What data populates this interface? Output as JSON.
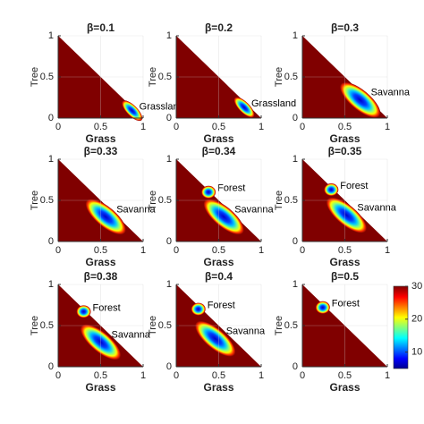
{
  "chart_data": [
    {
      "type": "heatmap",
      "title": "β=0.1",
      "xlabel": "Grass",
      "ylabel": "Tree",
      "xlim": [
        0,
        1
      ],
      "ylim": [
        0,
        1
      ],
      "xticks": [
        0,
        0.5,
        1
      ],
      "yticks": [
        0,
        0.5,
        1
      ],
      "grid": true,
      "colormap": "jet",
      "basins": [
        {
          "label": "Grassland",
          "x": 0.87,
          "y": 0.09
        }
      ]
    },
    {
      "type": "heatmap",
      "title": "β=0.2",
      "xlabel": "Grass",
      "ylabel": "Tree",
      "xlim": [
        0,
        1
      ],
      "ylim": [
        0,
        1
      ],
      "xticks": [
        0,
        0.5,
        1
      ],
      "yticks": [
        0,
        0.5,
        1
      ],
      "grid": true,
      "colormap": "jet",
      "basins": [
        {
          "label": "Grassland",
          "x": 0.8,
          "y": 0.13
        }
      ]
    },
    {
      "type": "heatmap",
      "title": "β=0.3",
      "xlabel": "Grass",
      "ylabel": "Tree",
      "xlim": [
        0,
        1
      ],
      "ylim": [
        0,
        1
      ],
      "xticks": [
        0,
        0.5,
        1
      ],
      "yticks": [
        0,
        0.5,
        1
      ],
      "grid": true,
      "colormap": "jet",
      "basins": [
        {
          "label": "Savanna",
          "x": 0.68,
          "y": 0.22
        }
      ]
    },
    {
      "type": "heatmap",
      "title": "β=0.33",
      "xlabel": "Grass",
      "ylabel": "Tree",
      "xlim": [
        0,
        1
      ],
      "ylim": [
        0,
        1
      ],
      "xticks": [
        0,
        0.5,
        1
      ],
      "yticks": [
        0,
        0.5,
        1
      ],
      "grid": true,
      "colormap": "jet",
      "basins": [
        {
          "label": "Savanna",
          "x": 0.56,
          "y": 0.3
        }
      ]
    },
    {
      "type": "heatmap",
      "title": "β=0.34",
      "xlabel": "Grass",
      "ylabel": "Tree",
      "xlim": [
        0,
        1
      ],
      "ylim": [
        0,
        1
      ],
      "xticks": [
        0,
        0.5,
        1
      ],
      "yticks": [
        0,
        0.5,
        1
      ],
      "grid": true,
      "colormap": "jet",
      "basins": [
        {
          "label": "Forest",
          "x": 0.38,
          "y": 0.6
        },
        {
          "label": "Savanna",
          "x": 0.56,
          "y": 0.3
        }
      ]
    },
    {
      "type": "heatmap",
      "title": "β=0.35",
      "xlabel": "Grass",
      "ylabel": "Tree",
      "xlim": [
        0,
        1
      ],
      "ylim": [
        0,
        1
      ],
      "xticks": [
        0,
        0.5,
        1
      ],
      "yticks": [
        0,
        0.5,
        1
      ],
      "grid": true,
      "colormap": "jet",
      "basins": [
        {
          "label": "Forest",
          "x": 0.34,
          "y": 0.63
        },
        {
          "label": "Savanna",
          "x": 0.52,
          "y": 0.32
        }
      ]
    },
    {
      "type": "heatmap",
      "title": "β=0.38",
      "xlabel": "Grass",
      "ylabel": "Tree",
      "xlim": [
        0,
        1
      ],
      "ylim": [
        0,
        1
      ],
      "xticks": [
        0,
        0.5,
        1
      ],
      "yticks": [
        0,
        0.5,
        1
      ],
      "grid": true,
      "colormap": "jet",
      "basins": [
        {
          "label": "Forest",
          "x": 0.3,
          "y": 0.67
        },
        {
          "label": "Savanna",
          "x": 0.5,
          "y": 0.3
        }
      ]
    },
    {
      "type": "heatmap",
      "title": "β=0.4",
      "xlabel": "Grass",
      "ylabel": "Tree",
      "xlim": [
        0,
        1
      ],
      "ylim": [
        0,
        1
      ],
      "xticks": [
        0,
        0.5,
        1
      ],
      "yticks": [
        0,
        0.5,
        1
      ],
      "grid": true,
      "colormap": "jet",
      "basins": [
        {
          "label": "Forest",
          "x": 0.26,
          "y": 0.7
        },
        {
          "label": "Savanna",
          "x": 0.46,
          "y": 0.34
        }
      ]
    },
    {
      "type": "heatmap",
      "title": "β=0.5",
      "xlabel": "Grass",
      "ylabel": "Tree",
      "xlim": [
        0,
        1
      ],
      "ylim": [
        0,
        1
      ],
      "xticks": [
        0,
        0.5,
        1
      ],
      "yticks": [
        0,
        0.5,
        1
      ],
      "grid": true,
      "colormap": "jet",
      "basins": [
        {
          "label": "Forest",
          "x": 0.24,
          "y": 0.72
        }
      ],
      "colorbar": {
        "lim": [
          5,
          30
        ],
        "ticks": [
          10,
          20,
          30
        ]
      }
    }
  ]
}
